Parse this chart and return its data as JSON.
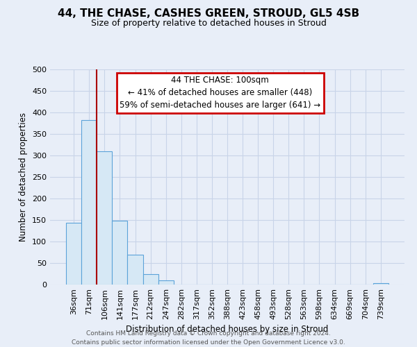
{
  "title": "44, THE CHASE, CASHES GREEN, STROUD, GL5 4SB",
  "subtitle": "Size of property relative to detached houses in Stroud",
  "xlabel": "Distribution of detached houses by size in Stroud",
  "ylabel": "Number of detached properties",
  "bar_labels": [
    "36sqm",
    "71sqm",
    "106sqm",
    "141sqm",
    "177sqm",
    "212sqm",
    "247sqm",
    "282sqm",
    "317sqm",
    "352sqm",
    "388sqm",
    "423sqm",
    "458sqm",
    "493sqm",
    "528sqm",
    "563sqm",
    "598sqm",
    "634sqm",
    "669sqm",
    "704sqm",
    "739sqm"
  ],
  "bar_values": [
    144,
    383,
    309,
    149,
    70,
    25,
    9,
    0,
    0,
    0,
    0,
    0,
    0,
    0,
    0,
    0,
    0,
    0,
    0,
    0,
    3
  ],
  "bar_face_color": "#d6e8f5",
  "bar_edge_color": "#5ba3d9",
  "red_line_bar_index": 1,
  "annotation_title": "44 THE CHASE: 100sqm",
  "annotation_line1": "← 41% of detached houses are smaller (448)",
  "annotation_line2": "59% of semi-detached houses are larger (641) →",
  "annotation_box_facecolor": "#ffffff",
  "annotation_box_edgecolor": "#cc0000",
  "ylim": [
    0,
    500
  ],
  "yticks": [
    0,
    50,
    100,
    150,
    200,
    250,
    300,
    350,
    400,
    450,
    500
  ],
  "grid_color": "#c8d4e8",
  "background_color": "#e8eef8",
  "footer_line1": "Contains HM Land Registry data © Crown copyright and database right 2024.",
  "footer_line2": "Contains public sector information licensed under the Open Government Licence v3.0."
}
